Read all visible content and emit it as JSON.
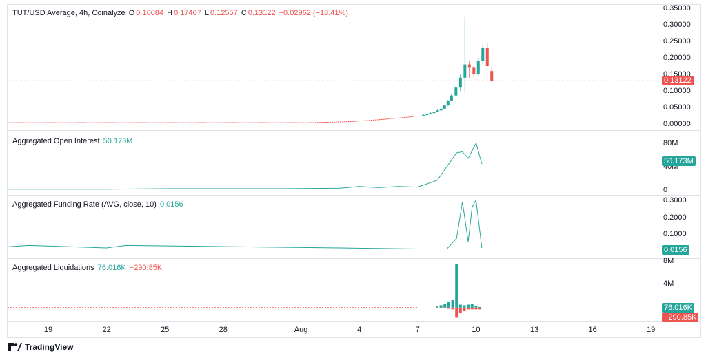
{
  "header": {
    "symbol": "TUT/USD Average, 4h, Coinalyze",
    "o_label": "O",
    "o_value": "0.16084",
    "h_label": "H",
    "h_value": "0.17407",
    "l_label": "L",
    "l_value": "0.12557",
    "c_label": "C",
    "c_value": "0.13122",
    "change": "−0.02962 (−18.41%)"
  },
  "colors": {
    "up": "#26a69a",
    "down": "#ef5350",
    "line": "#26a69a",
    "grid": "#e0e3eb"
  },
  "footer": {
    "brand": "TradingView",
    "logo_icon": "tradingview-logo-icon"
  },
  "xaxis": {
    "ticks": [
      "19",
      "22",
      "25",
      "28",
      "Aug",
      "4",
      "7",
      "10",
      "13",
      "16",
      "19"
    ]
  },
  "chart_data": [
    {
      "type": "candlestick",
      "title": "TUT/USD Average, 4h, Coinalyze",
      "ylim": [
        0,
        0.35
      ],
      "yticks": [
        "0.35000",
        "0.30000",
        "0.25000",
        "0.20000",
        "0.15000",
        "0.10000",
        "0.05000",
        "0.00000"
      ],
      "last_value": "0.13122",
      "candles": [
        {
          "t": "Aug 7",
          "o": 0.025,
          "h": 0.029,
          "l": 0.024,
          "c": 0.027
        },
        {
          "t": "Aug 7",
          "o": 0.027,
          "h": 0.032,
          "l": 0.026,
          "c": 0.03
        },
        {
          "t": "Aug 7",
          "o": 0.03,
          "h": 0.035,
          "l": 0.029,
          "c": 0.033
        },
        {
          "t": "Aug 8",
          "o": 0.033,
          "h": 0.039,
          "l": 0.032,
          "c": 0.037
        },
        {
          "t": "Aug 8",
          "o": 0.037,
          "h": 0.043,
          "l": 0.036,
          "c": 0.041
        },
        {
          "t": "Aug 8",
          "o": 0.041,
          "h": 0.048,
          "l": 0.04,
          "c": 0.046
        },
        {
          "t": "Aug 8",
          "o": 0.046,
          "h": 0.058,
          "l": 0.045,
          "c": 0.056
        },
        {
          "t": "Aug 8",
          "o": 0.056,
          "h": 0.072,
          "l": 0.055,
          "c": 0.07
        },
        {
          "t": "Aug 8",
          "o": 0.07,
          "h": 0.09,
          "l": 0.068,
          "c": 0.086
        },
        {
          "t": "Aug 9",
          "o": 0.086,
          "h": 0.115,
          "l": 0.084,
          "c": 0.11
        },
        {
          "t": "Aug 9",
          "o": 0.11,
          "h": 0.15,
          "l": 0.1,
          "c": 0.14
        },
        {
          "t": "Aug 9",
          "o": 0.14,
          "h": 0.325,
          "l": 0.095,
          "c": 0.18
        },
        {
          "t": "Aug 9",
          "o": 0.18,
          "h": 0.19,
          "l": 0.14,
          "c": 0.17
        },
        {
          "t": "Aug 9",
          "o": 0.17,
          "h": 0.175,
          "l": 0.14,
          "c": 0.15
        },
        {
          "t": "Aug 9",
          "o": 0.15,
          "h": 0.2,
          "l": 0.145,
          "c": 0.19
        },
        {
          "t": "Aug 10",
          "o": 0.19,
          "h": 0.24,
          "l": 0.18,
          "c": 0.23
        },
        {
          "t": "Aug 10",
          "o": 0.23,
          "h": 0.245,
          "l": 0.17,
          "c": 0.175
        },
        {
          "t": "Aug 10",
          "o": 0.16,
          "h": 0.174,
          "l": 0.126,
          "c": 0.131
        }
      ]
    },
    {
      "type": "line",
      "title": "Aggregated Open Interest",
      "last_value": "50.173M",
      "ylim": [
        0,
        100
      ],
      "yticks": [
        "80M",
        "40M",
        "0"
      ],
      "x": [
        "Jul 16",
        "Jul 19",
        "Jul 22",
        "Jul 25",
        "Jul 28",
        "Jul 31",
        "Aug 3",
        "Aug 4",
        "Aug 5",
        "Aug 6",
        "Aug 7",
        "Aug 8",
        "Aug 8.5",
        "Aug 9",
        "Aug 9.3",
        "Aug 9.6",
        "Aug 10",
        "Aug 10.3"
      ],
      "values": [
        4,
        4,
        4,
        5,
        5,
        5,
        6,
        9,
        7,
        9,
        8,
        20,
        45,
        70,
        72,
        60,
        88,
        50
      ]
    },
    {
      "type": "line",
      "title": "Aggregated Funding Rate (AVG, close, 10)",
      "last_value": "0.0156",
      "ylim": [
        0,
        0.3
      ],
      "yticks": [
        "0.3000",
        "0.2000",
        "0.1000"
      ],
      "x": [
        "Jul 16",
        "Jul 18",
        "Jul 22",
        "Jul 23",
        "Aug 3",
        "Aug 7",
        "Aug 8.5",
        "Aug 9",
        "Aug 9.3",
        "Aug 9.6",
        "Aug 9.8",
        "Aug 10",
        "Aug 10.3"
      ],
      "values": [
        0.0156,
        0.03,
        0.0156,
        0.03,
        0.0156,
        0.01,
        0.01,
        0.07,
        0.28,
        0.05,
        0.25,
        0.29,
        0.0156
      ]
    },
    {
      "type": "bar",
      "title": "Aggregated Liquidations",
      "long_value": "76.016K",
      "short_value": "−290.85K",
      "ylim": [
        -2,
        8
      ],
      "yticks": [
        "8M",
        "4M"
      ],
      "x": [
        "Aug 8",
        "Aug 8.2",
        "Aug 8.4",
        "Aug 8.6",
        "Aug 8.8",
        "Aug 9",
        "Aug 9.2",
        "Aug 9.4",
        "Aug 9.6",
        "Aug 9.8",
        "Aug 10",
        "Aug 10.2"
      ],
      "long": [
        0.2,
        0.4,
        0.6,
        1.0,
        1.3,
        7.4,
        0.5,
        0.4,
        0.5,
        0.6,
        0.3,
        0.1
      ],
      "short": [
        -0.05,
        -0.1,
        -0.1,
        -0.2,
        -0.3,
        -1.7,
        -0.9,
        -0.5,
        -0.3,
        -0.3,
        -0.3,
        -0.3
      ]
    }
  ]
}
